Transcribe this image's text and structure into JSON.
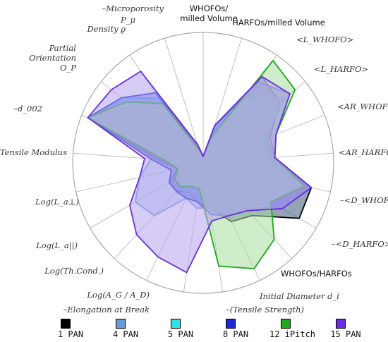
{
  "chart_data": {
    "type": "radar",
    "title": "",
    "axes": [
      "WHOFOs/\nmilled Volume",
      "HARFOs/milled Volume",
      "<L_WHOFO>",
      "<L_HARFO>",
      "<AR_WHOFO>",
      "<AR_HARFO>",
      "–<D_WHOFO>",
      "–<D_HARFO>",
      "WHOFOs/HARFOs",
      "Initial Diameter d_i",
      "–(Tensile Strength)",
      "–Elongation at Break",
      "Log(A_G / A_D)",
      "Log(Th.Cond.)",
      "Log(L_a||)",
      "Log(L_a⊥)",
      "Tensile Modulus",
      "–d_002",
      "Partial Orientation O_P",
      "Density ϱ",
      "–Microporosity P_μ"
    ],
    "range": [
      0,
      1
    ],
    "grid": true,
    "legend_position": "bottom",
    "series": [
      {
        "name": "1 PAN",
        "color": "#000000",
        "fill": "#3d5a7a",
        "values": [
          0.05,
          0.3,
          0.8,
          0.75,
          0.55,
          0.55,
          0.85,
          0.85,
          0.55,
          0.5,
          0.35,
          0.3,
          0.25,
          0.3,
          0.3,
          0.2,
          0.35,
          0.95,
          0.7,
          0.55,
          0.15
        ]
      },
      {
        "name": "4 PAN",
        "color": "#6b9bd6",
        "fill": "#a6c4ee",
        "values": [
          0.05,
          0.3,
          0.6,
          0.55,
          0.5,
          0.5,
          0.7,
          0.65,
          0.5,
          0.45,
          0.35,
          0.35,
          0.3,
          0.55,
          0.6,
          0.5,
          0.4,
          0.95,
          0.8,
          0.6,
          0.1
        ]
      },
      {
        "name": "5 PAN",
        "color": "#2de0ea",
        "fill": "#7ff0f3",
        "values": [
          0.05,
          0.3,
          0.6,
          0.8,
          0.5,
          0.5,
          0.75,
          0.6,
          0.45,
          0.4,
          0.4,
          0.3,
          0.3,
          0.25,
          0.2,
          0.15,
          0.3,
          0.95,
          0.8,
          0.6,
          0.1
        ]
      },
      {
        "name": "8 PAN",
        "color": "#1a26d8",
        "fill": "#5a64e0",
        "values": [
          0.05,
          0.3,
          0.75,
          0.85,
          0.6,
          0.55,
          0.85,
          0.7,
          0.5,
          0.45,
          0.4,
          0.3,
          0.3,
          0.3,
          0.3,
          0.25,
          0.4,
          0.95,
          0.8,
          0.65,
          0.15
        ]
      },
      {
        "name": "12 iPitch",
        "color": "#1ea81e",
        "fill": "#a8dca0",
        "values": [
          0.05,
          0.2,
          0.95,
          0.9,
          0.6,
          0.55,
          0.8,
          0.6,
          0.8,
          0.9,
          0.8,
          0.2,
          0.2,
          0.25,
          0.25,
          0.2,
          0.3,
          0.95,
          0.75,
          0.55,
          0.1
        ]
      },
      {
        "name": "15 PAN",
        "color": "#6a2fe0",
        "fill": "#b7a3ef",
        "values": [
          0.05,
          0.3,
          0.8,
          0.85,
          0.6,
          0.55,
          0.85,
          0.7,
          0.5,
          0.45,
          0.45,
          0.85,
          0.8,
          0.75,
          0.65,
          0.5,
          0.45,
          0.95,
          0.9,
          0.85,
          0.15
        ]
      }
    ]
  }
}
